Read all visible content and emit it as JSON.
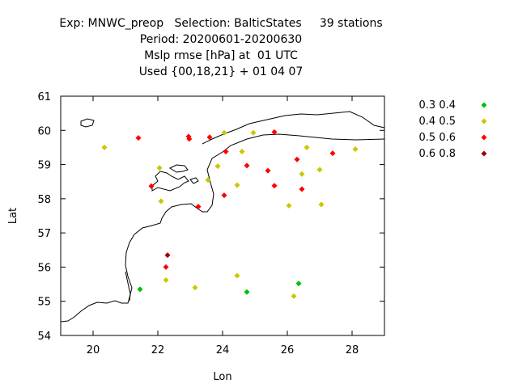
{
  "header": {
    "line1": "Exp: MNWC_preop   Selection: BalticStates     39 stations",
    "line2": "Period: 20200601-20200630",
    "line3": "Mslp rmse [hPa] at  01 UTC",
    "line4": "Used {00,18,21} + 01 04 07"
  },
  "chart_data": {
    "type": "scatter",
    "xlabel": "Lon",
    "ylabel": "Lat",
    "xlim": [
      19,
      29
    ],
    "ylim": [
      54,
      61
    ],
    "xticks": [
      20,
      22,
      24,
      26,
      28
    ],
    "yticks": [
      54,
      55,
      56,
      57,
      58,
      59,
      60,
      61
    ],
    "grid": false,
    "legend_position": "top-right, outside plot",
    "series": [
      {
        "name": "0.3 0.4",
        "color": "#00c000",
        "points": [
          [
            21.45,
            55.35
          ],
          [
            24.75,
            55.27
          ],
          [
            26.35,
            55.52
          ]
        ]
      },
      {
        "name": "0.4 0.5",
        "color": "#c8c800",
        "points": [
          [
            20.35,
            59.5
          ],
          [
            22.05,
            58.9
          ],
          [
            22.1,
            57.93
          ],
          [
            22.25,
            55.62
          ],
          [
            23.15,
            55.4
          ],
          [
            23.55,
            58.55
          ],
          [
            23.85,
            58.95
          ],
          [
            24.05,
            59.93
          ],
          [
            24.45,
            58.4
          ],
          [
            24.45,
            55.75
          ],
          [
            24.6,
            59.38
          ],
          [
            24.95,
            59.93
          ],
          [
            26.05,
            57.8
          ],
          [
            26.2,
            55.15
          ],
          [
            26.45,
            58.72
          ],
          [
            26.6,
            59.5
          ],
          [
            27.0,
            58.85
          ],
          [
            27.05,
            57.83
          ],
          [
            28.1,
            59.45
          ]
        ]
      },
      {
        "name": "0.5 0.6",
        "color": "#ff0000",
        "points": [
          [
            21.4,
            59.78
          ],
          [
            21.8,
            58.37
          ],
          [
            22.25,
            56.0
          ],
          [
            22.95,
            59.82
          ],
          [
            22.97,
            59.75
          ],
          [
            23.25,
            57.77
          ],
          [
            23.6,
            59.8
          ],
          [
            24.05,
            58.1
          ],
          [
            24.1,
            59.38
          ],
          [
            24.75,
            58.97
          ],
          [
            25.4,
            58.82
          ],
          [
            25.6,
            59.95
          ],
          [
            25.6,
            58.38
          ],
          [
            26.3,
            59.15
          ],
          [
            26.45,
            58.28
          ],
          [
            27.4,
            59.33
          ]
        ]
      },
      {
        "name": "0.6 0.8",
        "color": "#a00000",
        "points": [
          [
            22.3,
            56.35
          ]
        ]
      }
    ]
  }
}
